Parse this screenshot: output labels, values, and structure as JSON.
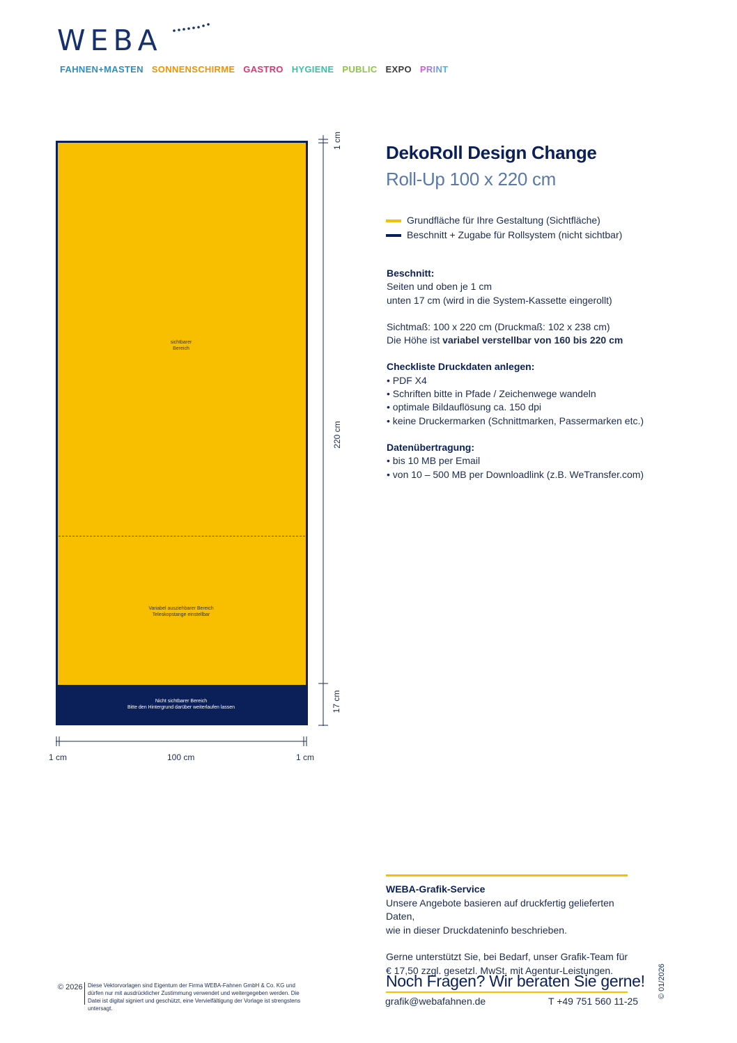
{
  "header": {
    "logo_text": "WEBA",
    "brands": [
      {
        "label": "FAHNEN+MASTEN",
        "color": "#2a8fc4"
      },
      {
        "label": "SONNENSCHIRME",
        "color": "#f39200"
      },
      {
        "label": "GASTRO",
        "color": "#e5336f"
      },
      {
        "label": "HYGIENE",
        "color": "#36c2a9"
      },
      {
        "label": "PUBLIC",
        "color": "#8dc63f"
      },
      {
        "label": "EXPO",
        "color": "#3b3b3b"
      },
      {
        "label": "PRINT",
        "color": "#e94fe0",
        "color2": "#26c6e8"
      }
    ]
  },
  "drawing": {
    "visible_area": "sichtbarer\nBereich",
    "variable_area": "Variabel ausziehbarer Bereich\nTeleskopstange einstellbar",
    "hidden_area": "Nicht sichtbarer Bereich\nBitte den Hintergrund darüber weiterlaufen lassen",
    "dim_top": "1 cm",
    "dim_height": "220 cm",
    "dim_bottom": "17 cm",
    "dim_left": "1 cm",
    "dim_width": "100 cm",
    "dim_right": "1 cm",
    "colors": {
      "visible": "#f8bf00",
      "bleed": "#0b2058"
    }
  },
  "title": {
    "line1": "DekoRoll Design Change",
    "line2": "Roll-Up 100 x 220 cm"
  },
  "legend": [
    {
      "label": "Grundfläche für Ihre Gestaltung (Sichtfläche)",
      "color": "#f8bf00"
    },
    {
      "label": "Beschnitt + Zugabe für Rollsystem (nicht sichtbar)",
      "color": "#0b2058"
    }
  ],
  "info": {
    "beschnitt_heading": "Beschnitt:",
    "beschnitt_lines": [
      "Seiten und oben je 1 cm",
      "unten 17 cm (wird in die System-Kassette eingerollt)"
    ],
    "sichtmass": "Sichtmaß: 100 x 220 cm (Druckmaß: 102 x 238 cm)",
    "hoehe_prefix": "Die Höhe ist ",
    "hoehe_bold": "variabel verstellbar von 160 bis 220 cm",
    "checklist_heading": "Checkliste Druckdaten anlegen:",
    "checklist": [
      "• PDF X4",
      "• Schriften bitte in Pfade / Zeichenwege wandeln",
      "• optimale Bildauflösung ca. 150 dpi",
      "• keine Druckermarken (Schnittmarken, Passermarken etc.)"
    ],
    "transfer_heading": "Datenübertragung:",
    "transfer": [
      "• bis 10 MB per Email",
      "• von 10 – 500 MB per Downloadlink (z.B. WeTransfer.com)"
    ]
  },
  "service": {
    "heading": "WEBA-Grafik-Service",
    "lines1": [
      "Unsere Angebote basieren auf druckfertig gelieferten Daten,",
      "wie in dieser Druckdateninfo beschrieben."
    ],
    "lines2": [
      "Gerne unterstützt Sie, bei Bedarf, unser Grafik-Team für",
      "€ 17,50 zzgl. gesetzl. MwSt. mit Agentur-Leistungen."
    ],
    "cta": "Noch Fragen? Wir beraten Sie gerne!",
    "email": "grafik@webafahnen.de",
    "phone": "T +49 751 560 11-25"
  },
  "footer": {
    "copyright": "© 2026",
    "legal": "Diese Vektorvorlagen sind Eigentum der Firma WEBA-Fahnen GmbH & Co. KG und dürfen nur mit ausdrücklicher Zustimmung verwendet und weitergegeben werden. Die Datei ist digital signiert und geschützt, eine Vervielfältigung der Vorlage ist strengstens untersagt.",
    "version": "© 01/2026"
  }
}
